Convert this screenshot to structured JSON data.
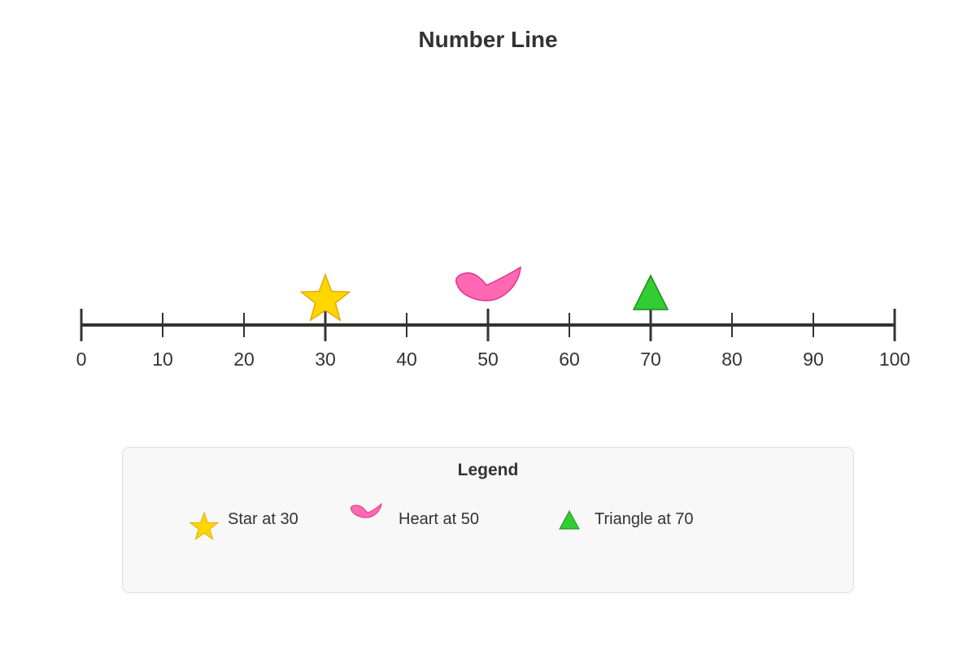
{
  "title": "Number Line",
  "chart_data": {
    "type": "number_line",
    "title": "Number Line",
    "xlim": [
      0,
      100
    ],
    "major_ticks": [
      0,
      10,
      20,
      30,
      40,
      50,
      60,
      70,
      80,
      90,
      100
    ],
    "tick_labels": [
      "0",
      "10",
      "20",
      "30",
      "40",
      "50",
      "60",
      "70",
      "80",
      "90",
      "100"
    ],
    "markers": [
      {
        "shape": "star",
        "value": 30,
        "color": "#ffd700",
        "stroke": "#e6a800"
      },
      {
        "shape": "heart",
        "value": 50,
        "color": "#ff69b4",
        "stroke": "#e0338f"
      },
      {
        "shape": "triangle",
        "value": 70,
        "color": "#32cd32",
        "stroke": "#228b22"
      }
    ]
  },
  "legend": {
    "title": "Legend",
    "items": [
      {
        "icon": "star-icon",
        "label": "Star at 30"
      },
      {
        "icon": "heart-icon",
        "label": "Heart at 50"
      },
      {
        "icon": "triangle-icon",
        "label": "Triangle at 70"
      }
    ]
  },
  "colors": {
    "axis": "#333333",
    "legend_background": "#f8f8f8",
    "legend_border": "#dddddd"
  }
}
